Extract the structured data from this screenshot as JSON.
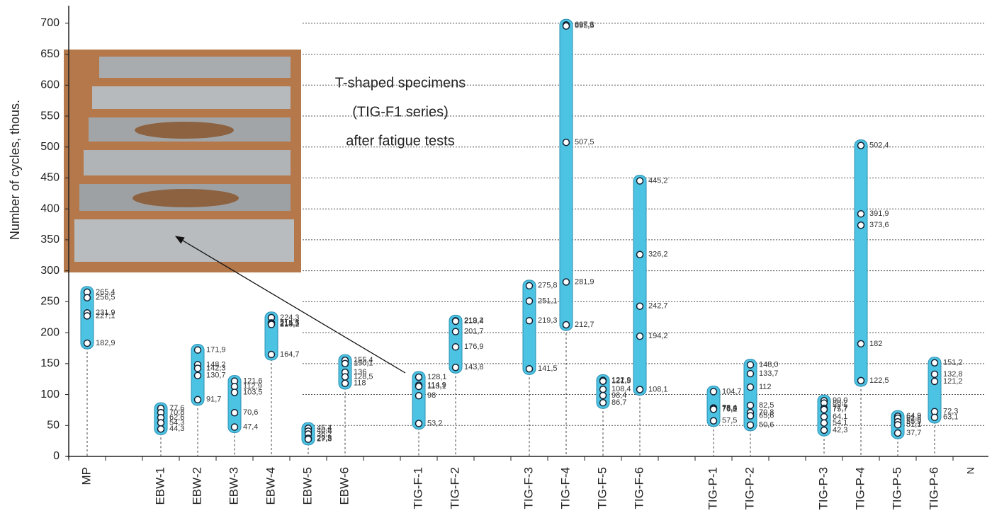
{
  "chart_data": {
    "type": "range-dot",
    "y_label": "Number of cycles, thous.",
    "x_label": "N",
    "annotation": [
      "T-shaped specimens",
      "(TIG-F1 series)",
      "after fatigue tests"
    ],
    "ylim": [
      0,
      725
    ],
    "yticks": [
      0,
      50,
      100,
      150,
      200,
      250,
      300,
      350,
      400,
      450,
      500,
      550,
      600,
      650,
      700
    ],
    "grid": true,
    "bar_color": "#4dc3e3",
    "marker_color": "#ffffff",
    "categories": [
      "MP",
      null,
      "EBW-1",
      "EBW-2",
      "EBW-3",
      "EBW-4",
      "EBW-5",
      "EBW-6",
      null,
      "TIG-F-1",
      "TIG-F-2",
      null,
      "TIG-F-3",
      "TIG-F-4",
      "TIG-F-5",
      "TIG-F-6",
      null,
      "TIG-P-1",
      "TIG-P-2",
      null,
      "TIG-P-3",
      "TIG-P-4",
      "TIG-P-5",
      "TIG-P-6"
    ],
    "values": [
      [
        265.4,
        256.5,
        231.9,
        227.1,
        182.9
      ],
      null,
      [
        77.6,
        70.8,
        62.6,
        54.3,
        44.3
      ],
      [
        171.9,
        148.2,
        142.3,
        130.7,
        91.7
      ],
      [
        121.6,
        112.9,
        103.5,
        70.6,
        47.4
      ],
      [
        224.3,
        215.7,
        214.5,
        213.2,
        164.7
      ],
      [
        45.4,
        40.8,
        36.2,
        29.3,
        27.8
      ],
      [
        155.4,
        150.1,
        136,
        128.5,
        118
      ],
      null,
      [
        128.1,
        114.9,
        113.1,
        98,
        53.2
      ],
      [
        219.2,
        218.4,
        201.7,
        176.9,
        143.8
      ],
      null,
      [
        275.8,
        251.1,
        219.3,
        141.5
      ],
      [
        697.3,
        695.5,
        507.5,
        281.9,
        212.7
      ],
      [
        122.9,
        121.5,
        108.4,
        98.4,
        86.7
      ],
      [
        445.2,
        326.2,
        242.7,
        194.2,
        108.1
      ],
      null,
      [
        104.7,
        78.4,
        76.8,
        76.2,
        57.5
      ],
      [
        148.0,
        133.7,
        112,
        82.5,
        70.8,
        65.6,
        50.6
      ],
      null,
      [
        90.0,
        86.2,
        77.7,
        75.7,
        64.1,
        54.1,
        42.3
      ],
      [
        502.4,
        391.9,
        373.6,
        182,
        122.5
      ],
      [
        64.9,
        61.8,
        55.9,
        51.1,
        37.7
      ],
      [
        151.2,
        132.8,
        121.2,
        72.3,
        63.1
      ]
    ],
    "value_labels": [
      [
        "265,4",
        "256,5",
        "231,9",
        "227,1",
        "182,9"
      ],
      null,
      [
        "77,6",
        "70,8",
        "62,6",
        "54,3",
        "44,3"
      ],
      [
        "171,9",
        "148,2",
        "142,3",
        "130,7",
        "91,7"
      ],
      [
        "121,6",
        "112,9",
        "103,5",
        "70,6",
        "47,4"
      ],
      [
        "224,3",
        "215,7",
        "214,5",
        "213,2",
        "164,7"
      ],
      [
        "45,4",
        "40,8",
        "36,2",
        "29,3",
        "27,8"
      ],
      [
        "155,4",
        "150,1",
        "136",
        "128,5",
        "118"
      ],
      null,
      [
        "128,1",
        "114,9",
        "113,1",
        "98",
        "53,2"
      ],
      [
        "219,2",
        "218,4",
        "201,7",
        "176,9",
        "143,8"
      ],
      null,
      [
        "275,8",
        "251,1",
        "219,3",
        "141,5"
      ],
      [
        "697,3",
        "695,5",
        "507,5",
        "281,9",
        "212,7"
      ],
      [
        "122,9",
        "121,5",
        "108,4",
        "98,4",
        "86,7"
      ],
      [
        "445,2",
        "326,2",
        "242,7",
        "194,2",
        "108,1"
      ],
      null,
      [
        "104,7",
        "78,4",
        "76,8",
        "76,2",
        "57,5"
      ],
      [
        "148,0",
        "133,7",
        "112",
        "82,5",
        "70,8",
        "65,6",
        "50,6"
      ],
      null,
      [
        "90,0",
        "86,2",
        "77,7",
        "75,7",
        "64,1",
        "54,1",
        "42,3"
      ],
      [
        "502,4",
        "391,9",
        "373,6",
        "182",
        "122,5"
      ],
      [
        "64,9",
        "61,8",
        "55,9",
        "51,1",
        "37,7"
      ],
      [
        "151,2",
        "132,8",
        "121,2",
        "72,3",
        "63,1"
      ]
    ]
  }
}
